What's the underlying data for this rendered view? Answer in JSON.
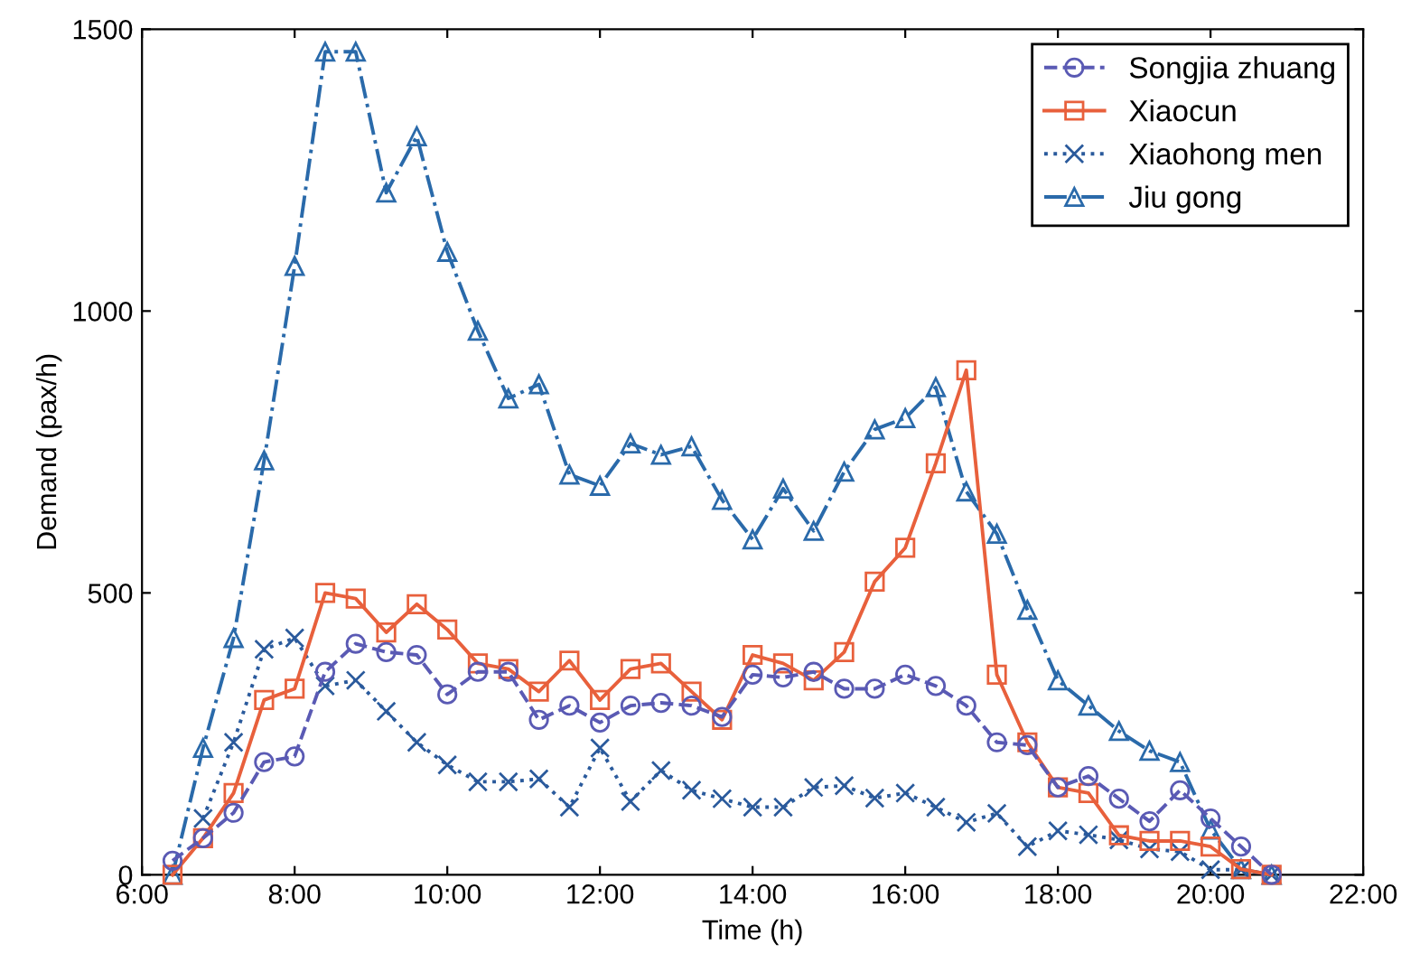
{
  "chart_data": {
    "type": "line",
    "xlabel": "Time (h)",
    "ylabel": "Demand (pax/h)",
    "x": [
      6.4,
      6.8,
      7.2,
      7.6,
      8.0,
      8.4,
      8.8,
      9.2,
      9.6,
      10.0,
      10.4,
      10.8,
      11.2,
      11.6,
      12.0,
      12.4,
      12.8,
      13.2,
      13.6,
      14.0,
      14.4,
      14.8,
      15.2,
      15.6,
      16.0,
      16.4,
      16.8,
      17.2,
      17.6,
      18.0,
      18.4,
      18.8,
      19.2,
      19.6,
      20.0,
      20.4,
      20.8
    ],
    "series": [
      {
        "name": "Songjia zhuang",
        "color": "#5a5ab4",
        "marker": "circle",
        "line_style": "dashed",
        "values": [
          25,
          65,
          110,
          200,
          210,
          360,
          410,
          395,
          390,
          320,
          360,
          360,
          275,
          300,
          270,
          300,
          305,
          300,
          280,
          355,
          350,
          360,
          330,
          330,
          355,
          335,
          300,
          235,
          230,
          155,
          175,
          135,
          95,
          150,
          100,
          50,
          0
        ]
      },
      {
        "name": "Xiaocun",
        "color": "#e8603c",
        "marker": "square",
        "line_style": "solid",
        "values": [
          0,
          65,
          145,
          310,
          330,
          500,
          490,
          430,
          480,
          435,
          375,
          365,
          325,
          380,
          310,
          365,
          375,
          325,
          275,
          390,
          375,
          345,
          395,
          520,
          580,
          730,
          895,
          355,
          235,
          155,
          145,
          70,
          60,
          60,
          50,
          10,
          0
        ]
      },
      {
        "name": "Xiaohong men",
        "color": "#2a5a9c",
        "marker": "cross",
        "line_style": "dotted",
        "values": [
          null,
          100,
          235,
          400,
          420,
          335,
          345,
          290,
          235,
          195,
          165,
          165,
          170,
          120,
          225,
          130,
          185,
          150,
          135,
          120,
          120,
          155,
          158,
          136,
          145,
          120,
          93,
          109,
          50,
          78,
          71,
          62,
          46,
          41,
          9,
          9,
          0
        ]
      },
      {
        "name": "Jiu gong",
        "color": "#2a6aaa",
        "marker": "triangle",
        "line_style": "dashdot",
        "values": [
          0,
          225,
          420,
          735,
          1080,
          1460,
          1460,
          1210,
          1310,
          1105,
          965,
          845,
          870,
          710,
          690,
          765,
          745,
          760,
          665,
          595,
          685,
          610,
          715,
          790,
          810,
          865,
          680,
          605,
          470,
          345,
          300,
          255,
          220,
          200,
          80,
          10,
          0
        ]
      }
    ],
    "xlim": [
      6,
      22
    ],
    "xticks": [
      {
        "value": 6,
        "label": "6:00"
      },
      {
        "value": 8,
        "label": "8:00"
      },
      {
        "value": 10,
        "label": "10:00"
      },
      {
        "value": 12,
        "label": "12:00"
      },
      {
        "value": 14,
        "label": "14:00"
      },
      {
        "value": 16,
        "label": "16:00"
      },
      {
        "value": 18,
        "label": "18:00"
      },
      {
        "value": 20,
        "label": "20:00"
      },
      {
        "value": 22,
        "label": "22:00"
      }
    ],
    "ylim": [
      0,
      1500
    ],
    "yticks": [
      0,
      500,
      1000,
      1500
    ],
    "grid": false,
    "legend": "top right"
  }
}
